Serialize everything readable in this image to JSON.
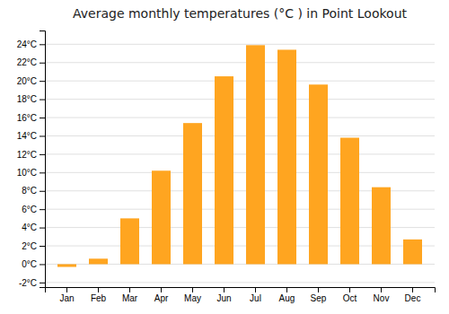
{
  "chart_data": {
    "type": "bar",
    "title": "Average monthly temperatures (°C ) in Point Lookout",
    "categories": [
      "Jan",
      "Feb",
      "Mar",
      "Apr",
      "May",
      "Jun",
      "Jul",
      "Aug",
      "Sep",
      "Oct",
      "Nov",
      "Dec"
    ],
    "values": [
      -0.3,
      0.6,
      5.0,
      10.2,
      15.4,
      20.5,
      23.9,
      23.4,
      19.6,
      13.8,
      8.4,
      2.7
    ],
    "color": "#FFA520",
    "ylim": [
      -2.5,
      25.5
    ],
    "yticks": [
      {
        "value": -2,
        "label": "-2°C"
      },
      {
        "value": 0,
        "label": "0°C"
      },
      {
        "value": 2,
        "label": "2°C"
      },
      {
        "value": 4,
        "label": "4°C"
      },
      {
        "value": 6,
        "label": "6°C"
      },
      {
        "value": 8,
        "label": "8°C"
      },
      {
        "value": 10,
        "label": "10°C"
      },
      {
        "value": 12,
        "label": "12°C"
      },
      {
        "value": 14,
        "label": "14°C"
      },
      {
        "value": 16,
        "label": "16°C"
      },
      {
        "value": 18,
        "label": "18°C"
      },
      {
        "value": 20,
        "label": "20°C"
      },
      {
        "value": 22,
        "label": "22°C"
      },
      {
        "value": 24,
        "label": "24°C"
      }
    ],
    "grid": true
  }
}
